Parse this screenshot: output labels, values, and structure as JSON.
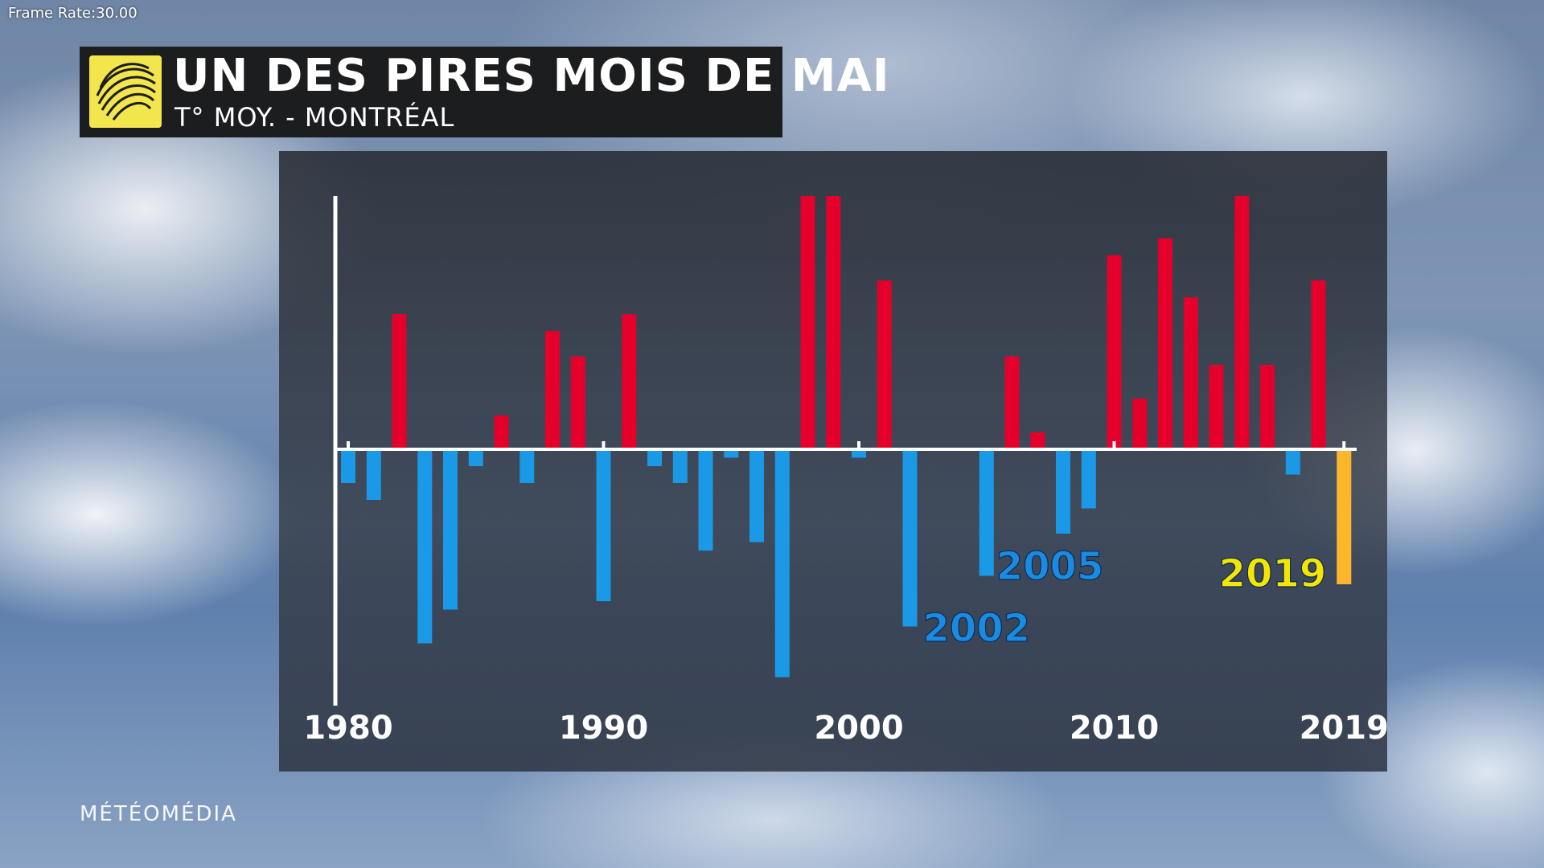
{
  "overlay": {
    "frame_rate": "Frame Rate:30.00"
  },
  "header": {
    "title": "UN DES PIRES MOIS DE MAI",
    "subtitle": "T° MOY. - MONTRÉAL",
    "logo_icon": "globe-swirl-icon"
  },
  "footer": {
    "brand": "MÉTÉOMÉDIA"
  },
  "colors": {
    "positive": "#e4002b",
    "negative": "#1a9ae6",
    "highlight": "#fbb72c",
    "label_2002_2005": "#1a8be0",
    "label_2019": "#f5e600"
  },
  "chart_data": {
    "type": "bar",
    "title": "UN DES PIRES MOIS DE MAI",
    "subtitle": "T° MOY. - MONTRÉAL",
    "xlabel": "",
    "ylabel": "",
    "x": [
      1980,
      1981,
      1982,
      1983,
      1984,
      1985,
      1986,
      1987,
      1988,
      1989,
      1990,
      1991,
      1992,
      1993,
      1994,
      1995,
      1996,
      1997,
      1998,
      1999,
      2000,
      2001,
      2002,
      2003,
      2004,
      2005,
      2006,
      2007,
      2008,
      2009,
      2010,
      2011,
      2012,
      2013,
      2014,
      2015,
      2016,
      2017,
      2018,
      2019
    ],
    "values": [
      -0.4,
      -0.6,
      1.6,
      -2.3,
      -1.9,
      -0.2,
      0.4,
      -0.4,
      1.4,
      1.1,
      -1.8,
      1.6,
      -0.2,
      -0.4,
      -1.2,
      -0.1,
      -1.1,
      -2.7,
      3.0,
      3.0,
      -0.1,
      2.0,
      -2.1,
      0,
      0,
      -1.5,
      1.1,
      0.2,
      -1.0,
      -0.7,
      2.3,
      0.6,
      2.5,
      1.8,
      1.0,
      3.0,
      1.0,
      -0.3,
      2.0,
      -1.6
    ],
    "highlight": [
      2019
    ],
    "ylim": [
      -3.0,
      3.0
    ],
    "x_ticks": [
      "1980",
      "1990",
      "2000",
      "2010",
      "2019"
    ],
    "annotations": [
      {
        "year": 2002,
        "text": "2002"
      },
      {
        "year": 2005,
        "text": "2005"
      },
      {
        "year": 2019,
        "text": "2019"
      }
    ],
    "grid": false,
    "legend": "none"
  }
}
